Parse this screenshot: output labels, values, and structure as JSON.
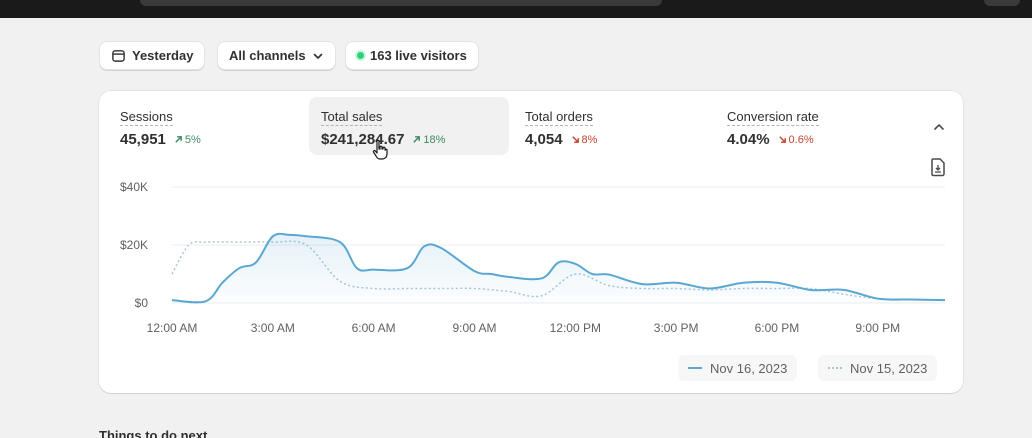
{
  "filters": {
    "date_label": "Yesterday",
    "channels_label": "All channels",
    "visitors_label": "163 live visitors"
  },
  "metrics": [
    {
      "label": "Sessions",
      "value": "45,951",
      "change": "5%",
      "direction": "up"
    },
    {
      "label": "Total sales",
      "value": "$241,284.67",
      "change": "18%",
      "direction": "up"
    },
    {
      "label": "Total orders",
      "value": "4,054",
      "change": "8%",
      "direction": "down"
    },
    {
      "label": "Conversion rate",
      "value": "4.04%",
      "change": "0.6%",
      "direction": "down"
    }
  ],
  "icons": {
    "date": "calendar-icon",
    "channels": "chevron-down-icon",
    "visitors": "live-dot-icon",
    "collapse": "chevron-up-icon",
    "export": "export-file-icon",
    "cursor": "pointer-hand-icon"
  },
  "colors": {
    "current_series": "#5aa7d1",
    "previous_series": "#a7c7dc",
    "up": "#3d8a62",
    "down": "#c4432d",
    "live": "#29d37c"
  },
  "chart_data": {
    "type": "line",
    "x_ticks": [
      "12:00 AM",
      "3:00 AM",
      "6:00 AM",
      "9:00 AM",
      "12:00 PM",
      "3:00 PM",
      "6:00 PM",
      "9:00 PM"
    ],
    "y_ticks": [
      "$0",
      "$20K",
      "$40K"
    ],
    "ylim": [
      0,
      40000
    ],
    "xlim": [
      0,
      23
    ],
    "grid": true,
    "legend_position": "bottom-right",
    "series": [
      {
        "name": "Nov 16, 2023",
        "style": "solid",
        "x": [
          0,
          1,
          1.5,
          2,
          2.5,
          3,
          3.5,
          4,
          5,
          5.5,
          6,
          7,
          7.5,
          8,
          9,
          9.5,
          10,
          11,
          11.5,
          12,
          12.5,
          13,
          14,
          15,
          16,
          17,
          18,
          19,
          20,
          21,
          22,
          23
        ],
        "values": [
          1000,
          600,
          7000,
          12000,
          14000,
          23000,
          23500,
          23000,
          21000,
          12000,
          11500,
          12000,
          19500,
          19000,
          11000,
          10000,
          9000,
          8500,
          14000,
          13500,
          10000,
          9800,
          6500,
          7000,
          5000,
          7000,
          7000,
          4500,
          4500,
          1500,
          1200,
          1000
        ]
      },
      {
        "name": "Nov 15, 2023",
        "style": "dotted",
        "x": [
          0,
          0.5,
          1,
          2,
          3,
          4,
          5,
          6,
          7,
          8,
          9,
          10,
          11,
          12,
          13,
          14,
          15,
          16,
          17,
          18,
          19,
          20,
          21,
          22,
          23
        ],
        "values": [
          10000,
          20000,
          21000,
          21000,
          21000,
          20000,
          7500,
          5000,
          5000,
          5000,
          5000,
          4000,
          2500,
          10000,
          6000,
          5000,
          5000,
          4500,
          5000,
          5000,
          5000,
          3000,
          1500,
          1200,
          1000
        ]
      }
    ]
  },
  "next_section": {
    "title": "Things to do next"
  }
}
